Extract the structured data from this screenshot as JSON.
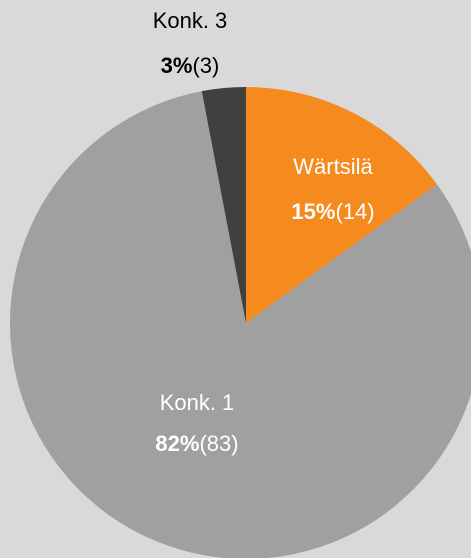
{
  "chart_data": {
    "type": "pie",
    "categories": [
      "Wärtsilä",
      "Konk. 1",
      "Konk. 3"
    ],
    "values": [
      15,
      82,
      3
    ],
    "value_labels": [
      "15%",
      "82%",
      "3%"
    ],
    "count_labels": [
      "(14)",
      "(83)",
      "(3)"
    ],
    "colors": [
      "#f58a1f",
      "#a0a0a0",
      "#404040"
    ]
  }
}
